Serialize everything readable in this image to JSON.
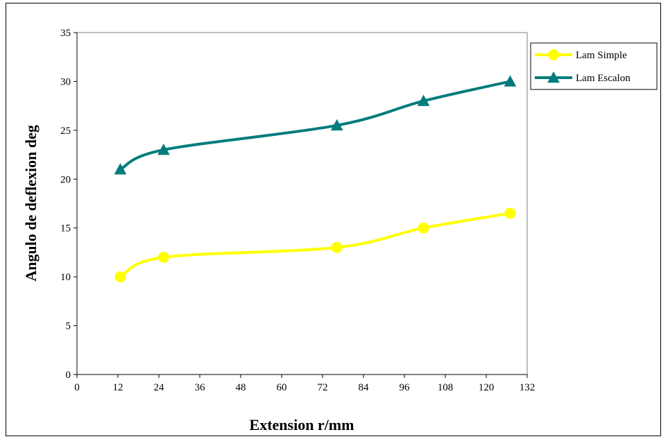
{
  "chart_data": {
    "type": "line",
    "title": "",
    "xlabel": "Extension r/mm",
    "ylabel": "Angulo de deflexion deg",
    "xlim": [
      0,
      132
    ],
    "ylim": [
      0,
      35
    ],
    "xticks": [
      0,
      12,
      24,
      36,
      48,
      60,
      72,
      84,
      96,
      108,
      120,
      132
    ],
    "yticks": [
      0,
      5,
      10,
      15,
      20,
      25,
      30,
      35
    ],
    "grid": false,
    "legend_position": "top-right",
    "series": [
      {
        "name": "Lam Simple",
        "color": "#ffff00",
        "marker": "circle",
        "x": [
          12.7,
          25.4,
          76.2,
          101.6,
          127
        ],
        "y": [
          10,
          12,
          13,
          15,
          16.5
        ]
      },
      {
        "name": "Lam Escalon",
        "color": "#007c7c",
        "marker": "triangle",
        "x": [
          12.7,
          25.4,
          76.2,
          101.6,
          127
        ],
        "y": [
          21,
          23,
          25.5,
          28,
          30
        ]
      }
    ]
  }
}
